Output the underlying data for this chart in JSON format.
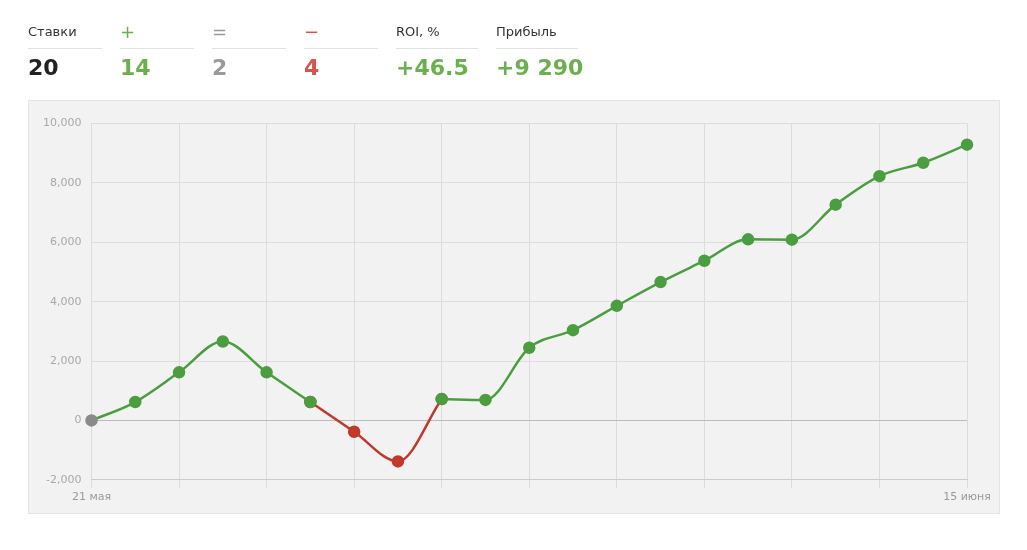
{
  "chart_data": [
    {
      "type": "other",
      "categories": [
        "Ставки",
        "+",
        "=",
        "−",
        "ROI, %",
        "Прибыль"
      ],
      "value_labels": [
        "20",
        "14",
        "2",
        "4",
        "+46.5",
        "+9 290"
      ],
      "colors": [
        "#222222",
        "#6ab04c",
        "#9a9a9a",
        "#d9534f",
        "#6ab04c",
        "#6ab04c"
      ]
    },
    {
      "type": "line",
      "categories": [
        "21 мая",
        null,
        null,
        null,
        null,
        null,
        null,
        null,
        null,
        null,
        null,
        null,
        null,
        null,
        null,
        null,
        null,
        null,
        null,
        null,
        "15 июня"
      ],
      "series": [
        {
          "color": "#c0392b",
          "values": [
            null,
            null,
            null,
            null,
            null,
            620,
            -380,
            -1380,
            720,
            null,
            null,
            null,
            null,
            null,
            null,
            null,
            null,
            null,
            null,
            null,
            null
          ]
        },
        {
          "color": "#4a9e3f",
          "colors": [
            "#8a8a8a",
            "#4a9e3f",
            "#4a9e3f",
            "#4a9e3f",
            "#4a9e3f",
            "#4a9e3f",
            "#c0392b",
            "#c0392b",
            "#4a9e3f",
            "#4a9e3f",
            "#4a9e3f",
            "#4a9e3f",
            "#4a9e3f",
            "#4a9e3f",
            "#4a9e3f",
            "#4a9e3f",
            "#4a9e3f",
            "#4a9e3f",
            "#4a9e3f",
            "#4a9e3f",
            "#4a9e3f"
          ],
          "values": [
            0,
            620,
            1620,
            2660,
            1620,
            620,
            null,
            null,
            720,
            690,
            2450,
            3040,
            3860,
            4660,
            5380,
            6100,
            6090,
            7270,
            8230,
            8680,
            9290
          ]
        }
      ],
      "ylim": [
        -2000,
        10000
      ],
      "yticks": [
        {
          "value": -2000,
          "label": "-2,000"
        },
        0,
        {
          "value": 2000,
          "label": "2,000"
        },
        {
          "value": 4000,
          "label": "4,000"
        },
        {
          "value": 6000,
          "label": "6,000"
        },
        {
          "value": 8000,
          "label": "8,000"
        },
        {
          "value": 10000,
          "label": "10,000"
        }
      ],
      "grid": true,
      "legend": false,
      "marker": "circle",
      "line_style": "solid"
    }
  ]
}
